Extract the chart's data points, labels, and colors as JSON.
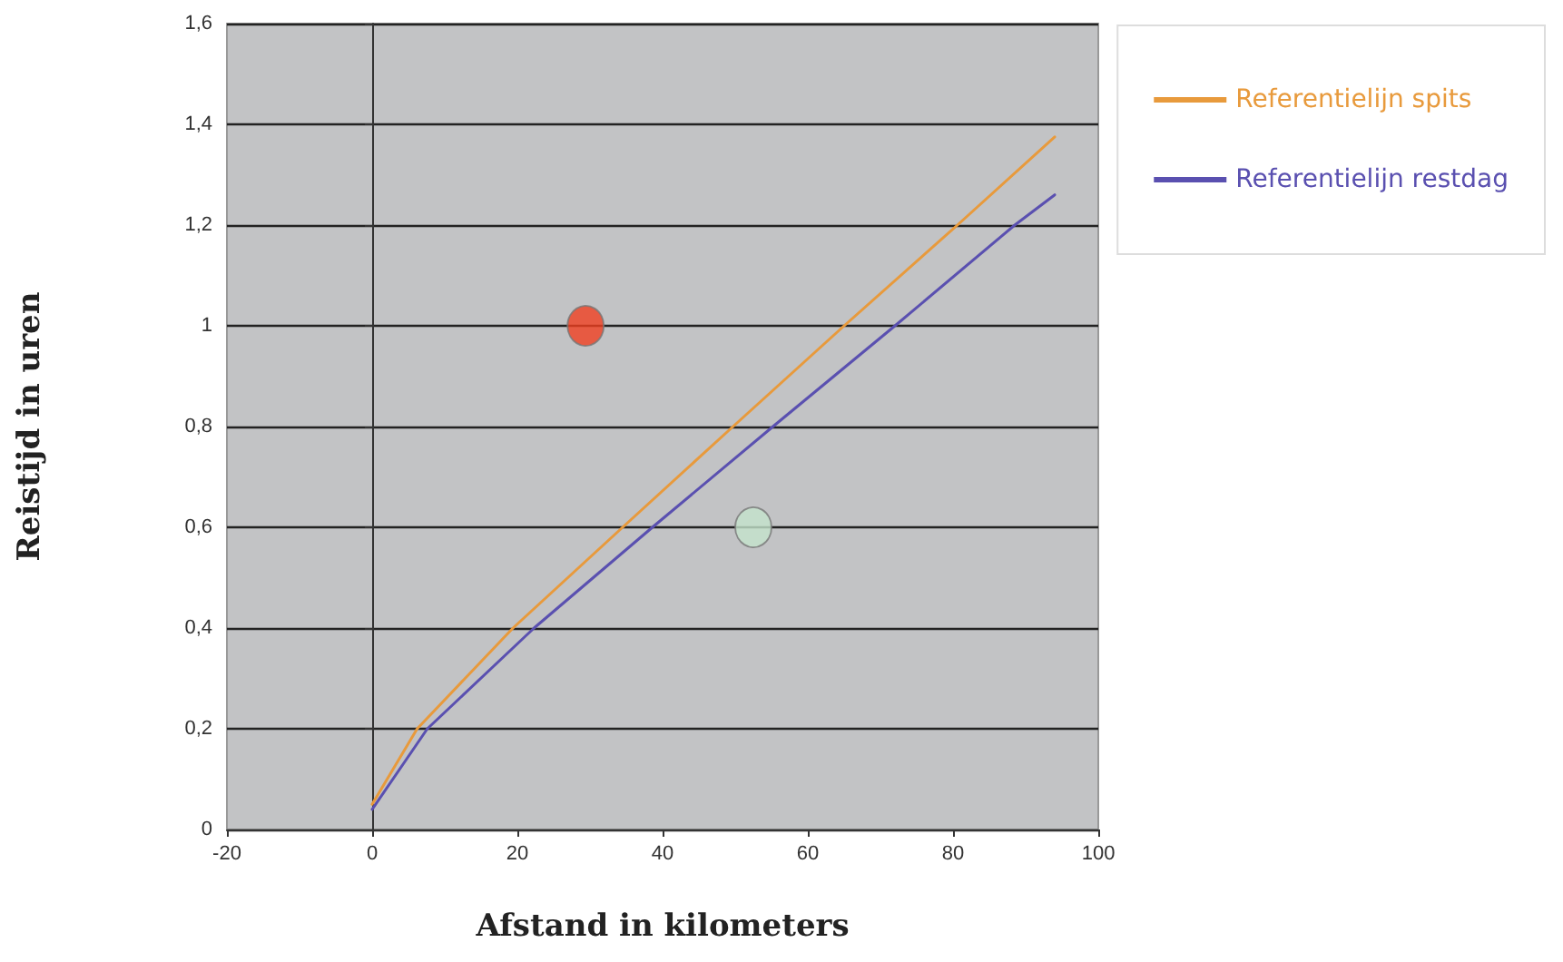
{
  "chart_data": {
    "type": "line",
    "xlabel": "Afstand in kilometers",
    "ylabel": "Reistijd in uren",
    "xlim": [
      -20,
      100
    ],
    "xticks": [
      -20,
      0,
      20,
      40,
      60,
      80,
      100
    ],
    "ylim": [
      0,
      1.6
    ],
    "yticks": [
      0,
      {
        "value": 0.2,
        "label": "0,2"
      },
      {
        "value": 0.4,
        "label": "0,4"
      },
      {
        "value": 0.6,
        "label": "0,6"
      },
      {
        "value": 0.8,
        "label": "0,8"
      },
      1,
      {
        "value": 1.2,
        "label": "1,2"
      },
      {
        "value": 1.4,
        "label": "1,4"
      },
      {
        "value": 1.6,
        "label": "1,6"
      }
    ],
    "grid": "y",
    "legend": "top right",
    "marker": "none",
    "line_style": "solid",
    "series": [
      {
        "name": "Referentielijn spits",
        "color": "#e89a3c",
        "x": [
          0,
          6.2,
          19.4,
          34.5,
          49.7,
          65,
          80.6,
          94
        ],
        "values": [
          0.05,
          0.2,
          0.4,
          0.6,
          0.8,
          1.0,
          1.2,
          1.375
        ]
      },
      {
        "name": "Referentielijn restdag",
        "color": "#5a50b0",
        "x": [
          0,
          7.6,
          22.3,
          38.6,
          55.2,
          72,
          88.5,
          94
        ],
        "values": [
          0.04,
          0.2,
          0.4,
          0.6,
          0.8,
          1.0,
          1.2,
          1.26
        ]
      },
      {
        "type": "scatter",
        "marker": "circle",
        "x": [
          29.4,
          52.5
        ],
        "values": [
          1.0,
          0.6
        ],
        "colors": [
          "#f04020",
          "#c4e4cc"
        ]
      }
    ]
  }
}
